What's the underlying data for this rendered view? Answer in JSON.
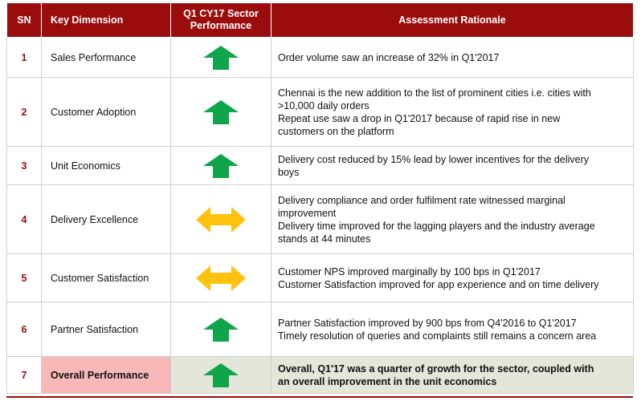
{
  "header": {
    "sn": "SN",
    "dimension": "Key Dimension",
    "performance_line1": "Q1 CY17 Sector",
    "performance_line2": "Performance",
    "rationale": "Assessment Rationale"
  },
  "colors": {
    "header_bg": "#9b0d0d",
    "arrow_up": "#0fa54a",
    "arrow_neutral": "#ffc20e",
    "overall_label_bg": "#f8b8b8",
    "overall_row_bg": "#e4e6d9"
  },
  "rows": [
    {
      "sn": "1",
      "dimension": "Sales Performance",
      "indicator": "up-arrow-icon",
      "rationale": [
        "Order volume saw an increase of 32% in Q1'2017"
      ]
    },
    {
      "sn": "2",
      "dimension": "Customer Adoption",
      "indicator": "up-arrow-icon",
      "rationale": [
        "Chennai is the new addition to the list of prominent cities i.e. cities with",
        ">10,000 daily orders",
        "Repeat use saw a drop in Q1'2017 because of rapid rise in new",
        "customers on the platform"
      ]
    },
    {
      "sn": "3",
      "dimension": "Unit Economics",
      "indicator": "up-arrow-icon",
      "rationale": [
        "Delivery cost reduced by 15% lead by lower incentives for the delivery",
        "boys"
      ]
    },
    {
      "sn": "4",
      "dimension": "Delivery Excellence",
      "indicator": "double-arrow-icon",
      "rationale": [
        "Delivery compliance and order fulfilment rate witnessed marginal",
        "improvement",
        "Delivery time improved for the lagging players and the industry average",
        "stands at 44 minutes"
      ]
    },
    {
      "sn": "5",
      "dimension": "Customer Satisfaction",
      "indicator": "double-arrow-icon",
      "rationale": [
        "Customer NPS improved marginally by 100 bps in Q1'2017",
        "Customer Satisfaction improved for app experience and on time delivery"
      ]
    },
    {
      "sn": "6",
      "dimension": "Partner Satisfaction",
      "indicator": "up-arrow-icon",
      "rationale": [
        "Partner Satisfaction improved by 900 bps from Q4'2016 to Q1'2017",
        "Timely resolution of queries and complaints still remains a concern area"
      ]
    },
    {
      "sn": "7",
      "dimension": "Overall Performance",
      "indicator": "up-arrow-icon",
      "rationale": [
        "Overall, Q1'17 was a quarter of growth for the sector, coupled with",
        "an overall improvement in the unit economics"
      ]
    }
  ]
}
